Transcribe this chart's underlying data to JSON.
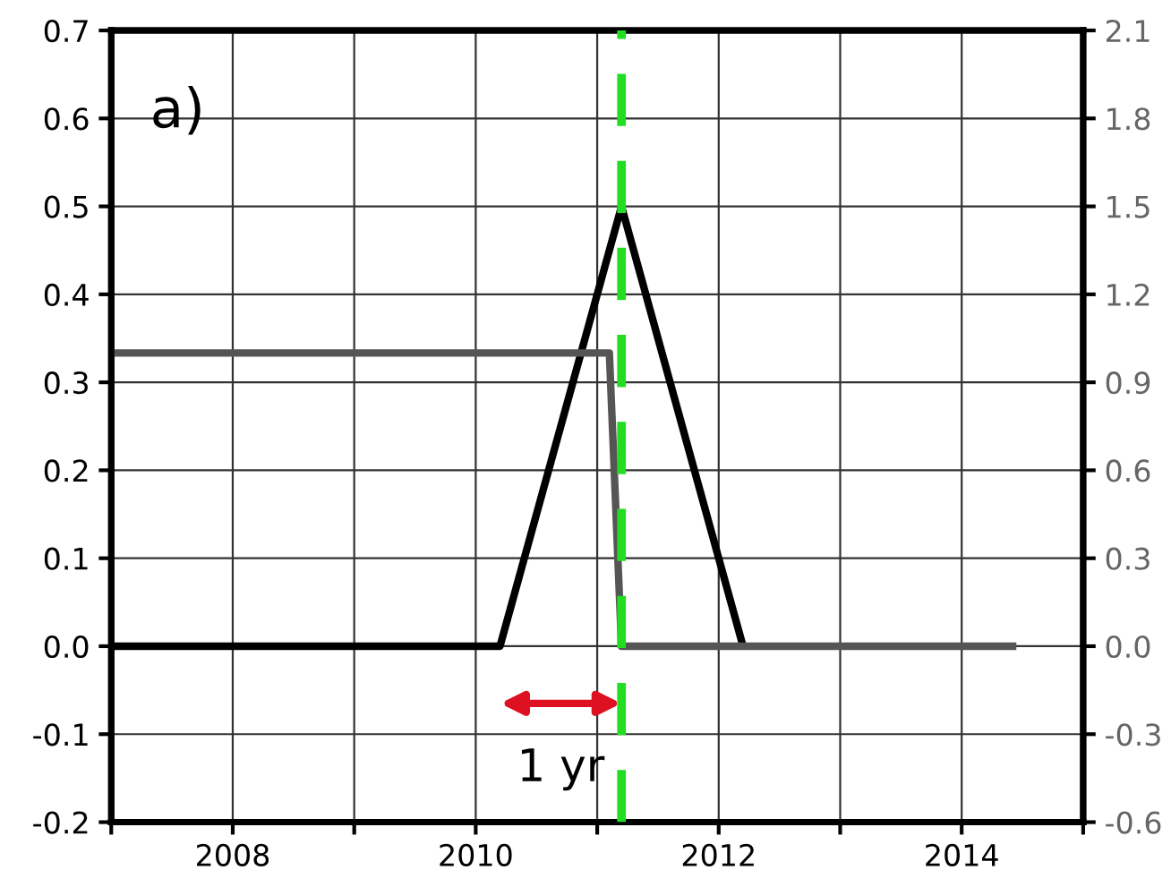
{
  "chart_data": {
    "type": "line",
    "x": [
      2007,
      2010.2,
      2011.2,
      2012.2
    ],
    "series": [
      {
        "color": "#000000",
        "values": [
          0,
          0,
          0.5,
          0
        ]
      },
      {
        "color": "#555555",
        "axis": "y2",
        "x": [
          2007,
          2011.1,
          2011.2,
          2014.45
        ],
        "values": [
          1.0,
          1.0,
          0,
          0
        ]
      }
    ],
    "xlim": [
      2007,
      2015
    ],
    "xticks": [
      {
        "value": 2007,
        "label": null
      },
      2008,
      {
        "value": 2009,
        "label": null
      },
      2010,
      {
        "value": 2011,
        "label": null
      },
      2012,
      {
        "value": 2013,
        "label": null
      },
      2014,
      {
        "value": 2015,
        "label": null
      }
    ],
    "ylim": [
      -0.2,
      0.7
    ],
    "yticks": [
      {
        "value": -0.2,
        "label": "-0.2"
      },
      {
        "value": -0.1,
        "label": "-0.1"
      },
      {
        "value": 0,
        "label": "0.0"
      },
      0.1,
      0.2,
      0.3,
      0.4,
      0.5,
      0.6,
      0.7
    ],
    "y2lim": [
      -0.6,
      2.1
    ],
    "y2ticks": [
      {
        "value": -0.6,
        "label": "-0.6"
      },
      {
        "value": -0.3,
        "label": "-0.3"
      },
      {
        "value": 0,
        "label": "0.0"
      },
      0.3,
      0.6,
      0.9,
      1.2,
      1.5,
      1.8,
      2.1
    ],
    "ref_lines": [
      {
        "axis": "x",
        "value": 2011.2,
        "color": "#22dd22",
        "line_style": "dashed"
      }
    ],
    "annotations": [
      "a)",
      "1 yr"
    ],
    "grid": true,
    "marker": "none",
    "line_style": "solid",
    "legend": false
  }
}
